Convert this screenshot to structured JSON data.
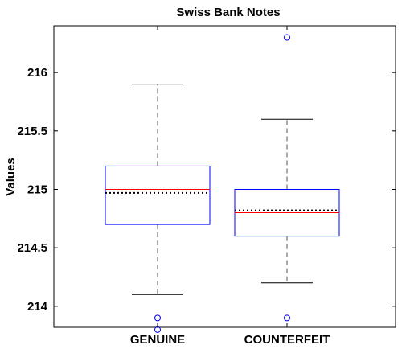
{
  "chart_data": {
    "type": "box",
    "title": "Swiss Bank Notes",
    "xlabel": "",
    "ylabel": "Values",
    "ylim": [
      213.82,
      216.4
    ],
    "yticks": [
      214,
      214.5,
      215,
      215.5,
      216
    ],
    "ytick_labels": [
      "214",
      "214.5",
      "215",
      "215.5",
      "216"
    ],
    "categories": [
      "GENUINE",
      "COUNTERFEIT"
    ],
    "grid": false,
    "boxes": [
      {
        "name": "GENUINE",
        "whisker_low": 214.1,
        "q1": 214.7,
        "median": 215.0,
        "mean": 214.97,
        "q3": 215.2,
        "whisker_high": 215.9,
        "outliers": [
          213.9,
          213.8
        ]
      },
      {
        "name": "COUNTERFEIT",
        "whisker_low": 214.2,
        "q1": 214.6,
        "median": 214.8,
        "mean": 214.82,
        "q3": 215.0,
        "whisker_high": 215.6,
        "outliers": [
          216.3,
          213.9
        ]
      }
    ],
    "colors": {
      "box": "#0000ff",
      "median": "#ff0000",
      "mean": "#000000",
      "whisker": "#000000",
      "outlier": "#0000ff",
      "axes": "#000000"
    }
  }
}
